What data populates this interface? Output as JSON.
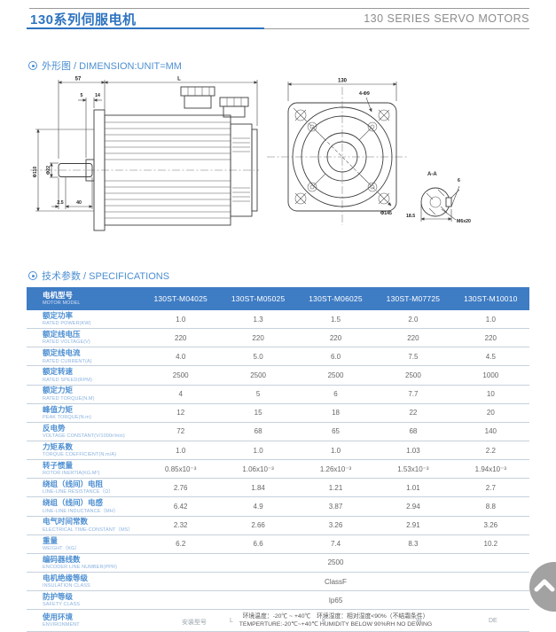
{
  "page": {
    "title_cn": "130系列伺服电机",
    "title_en": "130 SERIES SERVO MOTORS"
  },
  "sections": {
    "dimension_heading": "外形图 / DIMENSION:UNIT=MM",
    "specifications_heading": "技术参数 / SPECIFICATIONS"
  },
  "colors": {
    "accent_blue": "#2e74c0",
    "table_header_blue": "#3e7cc4",
    "row_label_blue": "#4d8fd1",
    "row_label_light_blue": "#8ab2df",
    "value_gray": "#666666",
    "title_gray": "#8c8c8c"
  },
  "diagram": {
    "side_view": {
      "dim_57": "57",
      "dim_5": "5",
      "dim_14": "14",
      "dim_L": "L",
      "dim_flange_dia": "Φ110",
      "dim_shaft_dia": "Φ22",
      "dim_2_5": "2.5",
      "dim_40": "40"
    },
    "front_view": {
      "dim_130": "130",
      "holes": "4-Φ9",
      "dim_145": "Φ145"
    },
    "section_view": {
      "label": "A-A",
      "dim_6": "6",
      "dim_18_5": "18.5",
      "thread": "M6x20"
    }
  },
  "table": {
    "header": {
      "cn": "电机型号",
      "en": "MOTOR MODEL"
    },
    "models": [
      "130ST-M04025",
      "130ST-M05025",
      "130ST-M06025",
      "130ST-M07725",
      "130ST-M10010"
    ],
    "rows": [
      {
        "cn": "额定功率",
        "en": "RATED POWER(KW)",
        "values": [
          "1.0",
          "1.3",
          "1.5",
          "2.0",
          "1.0"
        ]
      },
      {
        "cn": "额定线电压",
        "en": "RATED VOLTAGE(V)",
        "values": [
          "220",
          "220",
          "220",
          "220",
          "220"
        ]
      },
      {
        "cn": "额定线电流",
        "en": "RATED CURRENT(A)",
        "values": [
          "4.0",
          "5.0",
          "6.0",
          "7.5",
          "4.5"
        ]
      },
      {
        "cn": "额定转速",
        "en": "RATED SPEED(RPM)",
        "values": [
          "2500",
          "2500",
          "2500",
          "2500",
          "1000"
        ]
      },
      {
        "cn": "额定力矩",
        "en": "RATED TORQUE(N.M)",
        "values": [
          "4",
          "5",
          "6",
          "7.7",
          "10"
        ]
      },
      {
        "cn": "峰值力矩",
        "en": "PEAK TORQUE(N.m)",
        "values": [
          "12",
          "15",
          "18",
          "22",
          "20"
        ]
      },
      {
        "cn": "反电势",
        "en": "VOLTAGE CONSTANT(V/1000r/min)",
        "values": [
          "72",
          "68",
          "65",
          "68",
          "140"
        ]
      },
      {
        "cn": "力矩系数",
        "en": "TORQUE COEFFICIENT(N.m/A)",
        "values": [
          "1.0",
          "1.0",
          "1.0",
          "1.03",
          "2.2"
        ]
      },
      {
        "cn": "转子惯量",
        "en": "ROTOR INERTIA(KG.M²)",
        "values": [
          "0.85x10⁻³",
          "1.06x10⁻³",
          "1.26x10⁻³",
          "1.53x10⁻³",
          "1.94x10⁻³"
        ]
      },
      {
        "cn": "绕组（线间）电阻",
        "en": "LINE-LINE RESISTANCE（Ω）",
        "values": [
          "2.76",
          "1.84",
          "1.21",
          "1.01",
          "2.7"
        ]
      },
      {
        "cn": "绕组（线间）电感",
        "en": "LINE-LINE INDUCTANCE（MH）",
        "values": [
          "6.42",
          "4.9",
          "3.87",
          "2.94",
          "8.8"
        ]
      },
      {
        "cn": "电气时间常数",
        "en": "ELECTRICAL TIME-CONSTANT（MS）",
        "values": [
          "2.32",
          "2.66",
          "3.26",
          "2.91",
          "3.26"
        ]
      },
      {
        "cn": "重量",
        "en": "WEIGHT（KG）",
        "values": [
          "6.2",
          "6.6",
          "7.4",
          "8.3",
          "10.2"
        ]
      },
      {
        "cn": "编码器线数",
        "en": "ENCODER LINE NUMBER(PPR)",
        "span": "2500"
      },
      {
        "cn": "电机绝缘等级",
        "en": "INSULATION CLASS",
        "span": "ClassF"
      },
      {
        "cn": "防护等级",
        "en": "SAFETY CLASS",
        "span": "Ip65"
      },
      {
        "cn": "使用环境",
        "en": "ENVIRONMENT",
        "span_lines": [
          "环境温度：-20℃ ~ +40℃　环境湿度：相对湿度<90%（不结霜条件）",
          "TEMPERTURE:-20℃~+40℃   HUMIDITY BELOW 90%RH NO DEWING"
        ]
      }
    ]
  },
  "partial_next_table": {
    "fragments": [
      "安装型号",
      "L",
      "K",
      "W",
      "DE"
    ]
  },
  "scroll_top": {
    "icon": "chevron-up"
  }
}
